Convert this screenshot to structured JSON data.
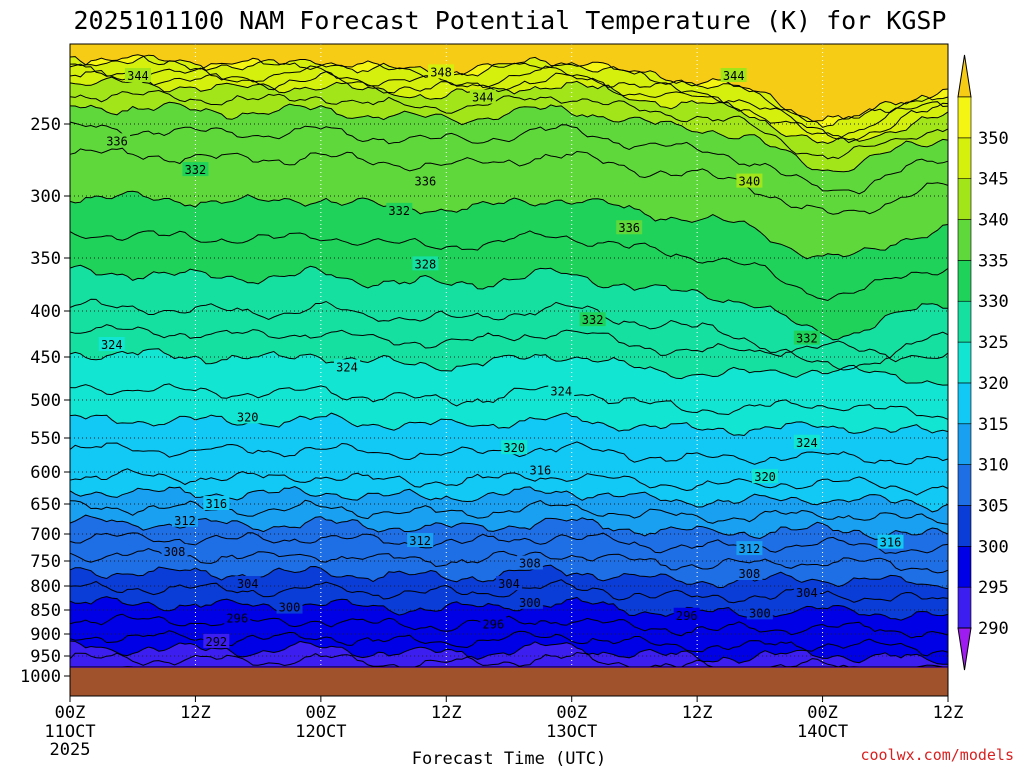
{
  "chart_data": {
    "type": "heatmap",
    "title": "2025101100 NAM Forecast Potential Temperature (K) for KGSP",
    "xlabel": "Forecast Time (UTC)",
    "ylabel": "",
    "x_ticks": [
      {
        "value": 0,
        "label": "00Z",
        "date": "11OCT",
        "year": "2025"
      },
      {
        "value": 12,
        "label": "12Z",
        "date": "",
        "year": ""
      },
      {
        "value": 24,
        "label": "00Z",
        "date": "12OCT",
        "year": ""
      },
      {
        "value": 36,
        "label": "12Z",
        "date": "",
        "year": ""
      },
      {
        "value": 48,
        "label": "00Z",
        "date": "13OCT",
        "year": ""
      },
      {
        "value": 60,
        "label": "12Z",
        "date": "",
        "year": ""
      },
      {
        "value": 72,
        "label": "00Z",
        "date": "14OCT",
        "year": ""
      },
      {
        "value": 84,
        "label": "12Z",
        "date": "",
        "year": ""
      }
    ],
    "xlim": [
      0,
      84
    ],
    "y_ticks": [
      250,
      300,
      350,
      400,
      450,
      500,
      550,
      600,
      650,
      700,
      750,
      800,
      850,
      900,
      950,
      1000
    ],
    "ylim": [
      200,
      1020
    ],
    "colorbar": {
      "levels": [
        290,
        295,
        300,
        305,
        310,
        315,
        320,
        325,
        330,
        335,
        340,
        345,
        350
      ],
      "colors": [
        "#9f1cf0",
        "#3c1ef0",
        "#0000e6",
        "#0a3cd8",
        "#1e6ee6",
        "#1aa0f0",
        "#12c8f5",
        "#12e6d2",
        "#16e0a0",
        "#1ed25a",
        "#5fd83c",
        "#a2e61a",
        "#d4f00c",
        "#f5f514",
        "#f7cc14"
      ]
    },
    "ground_color": "#a0522d",
    "isentropes": [
      {
        "theta": 292,
        "pressure": 955
      },
      {
        "theta": 296,
        "pressure": 905
      },
      {
        "theta": 300,
        "pressure": 835
      },
      {
        "theta": 304,
        "pressure": 770
      },
      {
        "theta": 308,
        "pressure": 705
      },
      {
        "theta": 312,
        "pressure": 655
      },
      {
        "theta": 316,
        "pressure": 605
      },
      {
        "theta": 320,
        "pressure": 525
      },
      {
        "theta": 324,
        "pressure": 445
      },
      {
        "theta": 328,
        "pressure": 395
      },
      {
        "theta": 332,
        "pressure": 330
      },
      {
        "theta": 336,
        "pressure": 270
      },
      {
        "theta": 340,
        "pressure": 235
      },
      {
        "theta": 344,
        "pressure": 215
      },
      {
        "theta": 348,
        "pressure": 205
      }
    ],
    "contour_labels": [
      {
        "text": "344",
        "t": 6.5,
        "p": 210
      },
      {
        "text": "348",
        "t": 35.5,
        "p": 207
      },
      {
        "text": "344",
        "t": 63.5,
        "p": 210
      },
      {
        "text": "344",
        "t": 39.5,
        "p": 228
      },
      {
        "text": "336",
        "t": 4.5,
        "p": 262
      },
      {
        "text": "332",
        "t": 12,
        "p": 282
      },
      {
        "text": "336",
        "t": 34,
        "p": 290
      },
      {
        "text": "340",
        "t": 65,
        "p": 290
      },
      {
        "text": "332",
        "t": 31.5,
        "p": 312
      },
      {
        "text": "336",
        "t": 53.5,
        "p": 326
      },
      {
        "text": "328",
        "t": 34,
        "p": 356
      },
      {
        "text": "332",
        "t": 50,
        "p": 410
      },
      {
        "text": "332",
        "t": 70.5,
        "p": 430
      },
      {
        "text": "324",
        "t": 4,
        "p": 437
      },
      {
        "text": "324",
        "t": 26.5,
        "p": 462
      },
      {
        "text": "324",
        "t": 47,
        "p": 490
      },
      {
        "text": "320",
        "t": 17,
        "p": 523
      },
      {
        "text": "320",
        "t": 42.5,
        "p": 565
      },
      {
        "text": "324",
        "t": 70.5,
        "p": 557
      },
      {
        "text": "316",
        "t": 45,
        "p": 598
      },
      {
        "text": "320",
        "t": 66.5,
        "p": 608
      },
      {
        "text": "316",
        "t": 14,
        "p": 650
      },
      {
        "text": "312",
        "t": 11,
        "p": 678
      },
      {
        "text": "316",
        "t": 78.5,
        "p": 716
      },
      {
        "text": "312",
        "t": 33.5,
        "p": 713
      },
      {
        "text": "312",
        "t": 65,
        "p": 728
      },
      {
        "text": "308",
        "t": 10,
        "p": 733
      },
      {
        "text": "308",
        "t": 44,
        "p": 755
      },
      {
        "text": "308",
        "t": 65,
        "p": 776
      },
      {
        "text": "304",
        "t": 17,
        "p": 796
      },
      {
        "text": "304",
        "t": 42,
        "p": 796
      },
      {
        "text": "304",
        "t": 70.5,
        "p": 815
      },
      {
        "text": "300",
        "t": 21,
        "p": 845
      },
      {
        "text": "300",
        "t": 44,
        "p": 835
      },
      {
        "text": "300",
        "t": 66,
        "p": 857
      },
      {
        "text": "296",
        "t": 16,
        "p": 868
      },
      {
        "text": "296",
        "t": 40.5,
        "p": 880
      },
      {
        "text": "296",
        "t": 59,
        "p": 862
      },
      {
        "text": "292",
        "t": 14,
        "p": 918
      }
    ]
  },
  "credit": "coolwx.com/models"
}
